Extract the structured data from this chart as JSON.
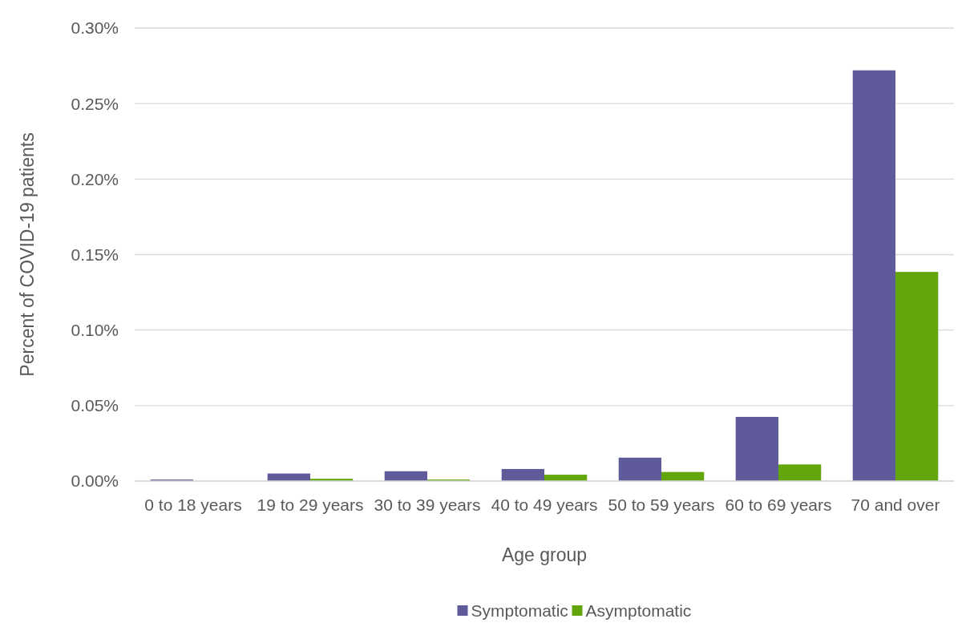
{
  "chart_data": {
    "type": "bar",
    "xlabel": "Age group",
    "ylabel": "Percent of COVID-19 patients",
    "categories": [
      "0 to 18 years",
      "19 to 29 years",
      "30 to 39 years",
      "40 to 49 years",
      "50 to 59 years",
      "60 to 69 years",
      "70 and over"
    ],
    "series": [
      {
        "name": "Symptomatic",
        "color": "#5f5b9a",
        "values": [
          0.001,
          0.005,
          0.0065,
          0.008,
          0.0155,
          0.0425,
          0.272
        ]
      },
      {
        "name": "Asymptomatic",
        "color": "#62a60c",
        "values": [
          0,
          0.0015,
          0.001,
          0.0042,
          0.006,
          0.011,
          0.1385
        ]
      }
    ],
    "ylim": [
      0,
      0.3
    ],
    "yticks": [
      {
        "value": 0,
        "label": "0.00%"
      },
      {
        "value": 0.05,
        "label": "0.05%"
      },
      {
        "value": 0.1,
        "label": "0.10%"
      },
      {
        "value": 0.15,
        "label": "0.15%"
      },
      {
        "value": 0.2,
        "label": "0.20%"
      },
      {
        "value": 0.25,
        "label": "0.25%"
      },
      {
        "value": 0.3,
        "label": "0.30%"
      }
    ],
    "grid": "y",
    "legend": "bottom"
  }
}
